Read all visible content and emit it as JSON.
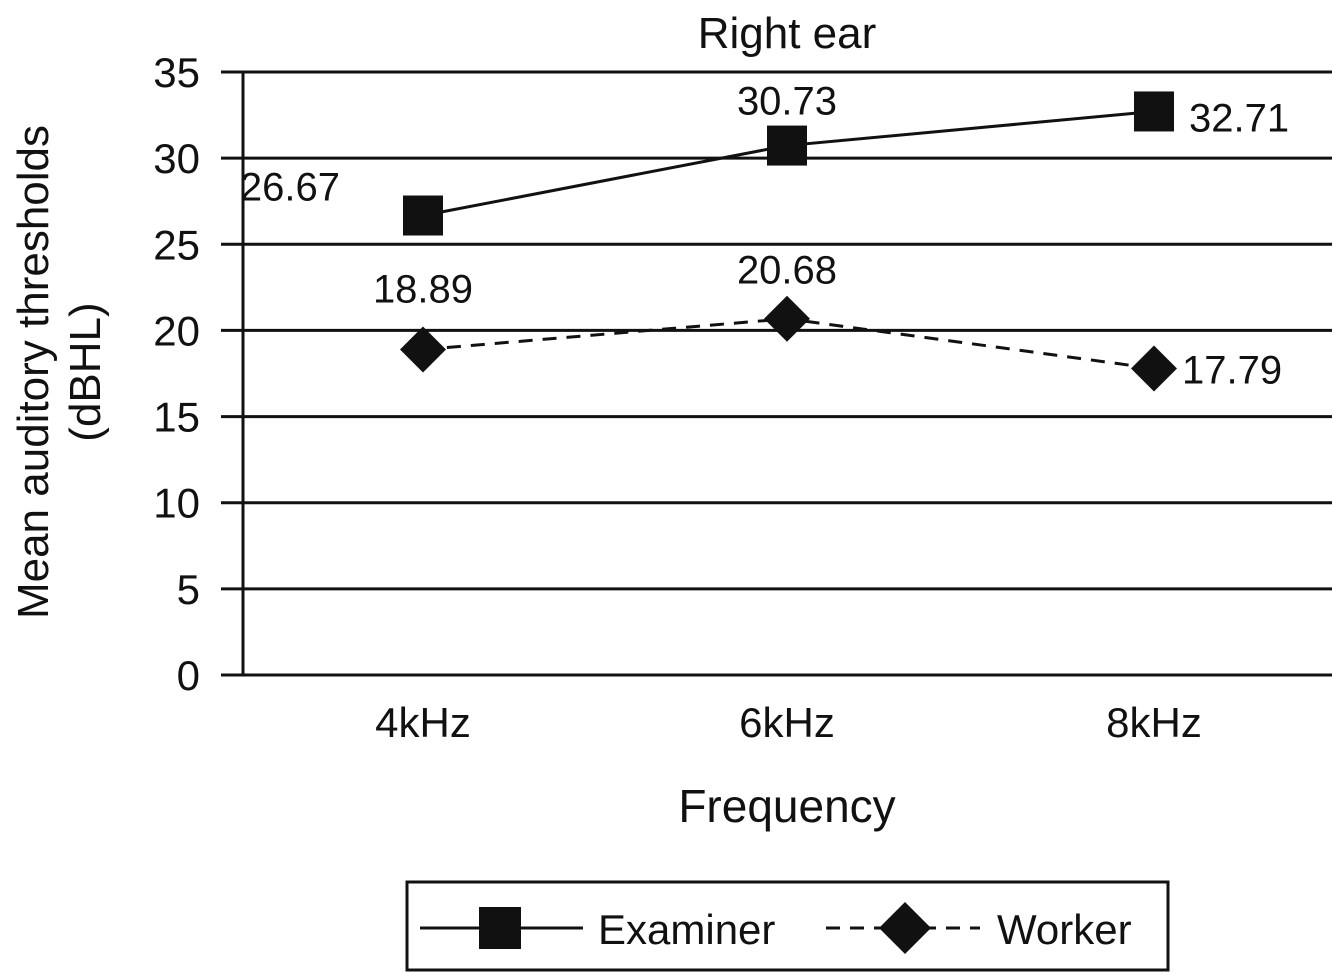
{
  "chart_data": {
    "type": "line",
    "title": "Right ear",
    "xlabel": "Frequency",
    "ylabel_lines": [
      "Mean auditory thresholds",
      "(dBHL)"
    ],
    "categories": [
      "4kHz",
      "6kHz",
      "8kHz"
    ],
    "ylim": [
      0,
      35
    ],
    "yticks": [
      "0",
      "5",
      "10",
      "15",
      "20",
      "25",
      "30",
      "35"
    ],
    "grid": true,
    "legend_position": "bottom",
    "series": [
      {
        "name": "Examiner",
        "values": [
          26.67,
          30.73,
          32.71
        ],
        "labels": [
          "26.67",
          "30.73",
          "32.71"
        ],
        "marker": "square",
        "line": "solid",
        "color": "#111111"
      },
      {
        "name": "Worker",
        "values": [
          18.89,
          20.68,
          17.79
        ],
        "labels": [
          "18.89",
          "20.68",
          "17.79"
        ],
        "marker": "diamond",
        "line": "dashed",
        "color": "#111111"
      }
    ]
  }
}
